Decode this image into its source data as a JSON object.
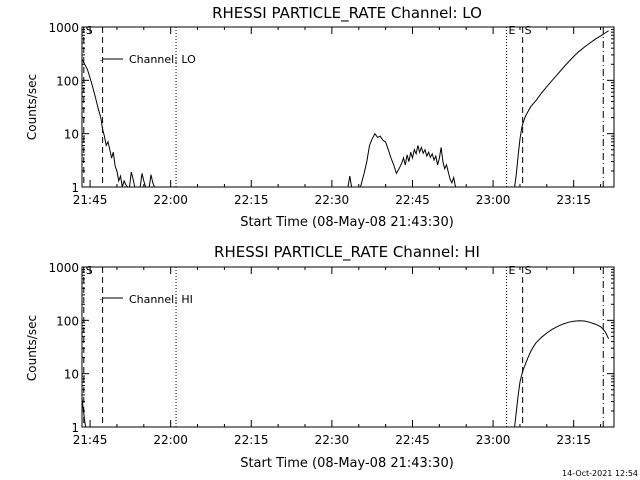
{
  "footer_timestamp": "14-Oct-2021 12:54",
  "chart_data": [
    {
      "type": "line",
      "title": "RHESSI PARTICLE_RATE Channel: LO",
      "xlabel": "Start Time (08-May-08 21:43:30)",
      "ylabel": "Counts/sec",
      "y_scale": "log",
      "ylim": [
        1,
        1000
      ],
      "xlim": [
        "21:43:30",
        "23:22:30"
      ],
      "x_ticks": [
        "21:45",
        "22:00",
        "22:15",
        "22:30",
        "22:45",
        "23:00",
        "23:15"
      ],
      "y_ticks": [
        "1",
        "10",
        "100",
        "1000"
      ],
      "legend": {
        "entries": [
          "Channel: LO"
        ],
        "placement": "top-left"
      },
      "markers": [
        {
          "label": "S",
          "time": "21:43:50",
          "style": "dashed"
        },
        {
          "label": "",
          "time": "21:47:20",
          "style": "dashed"
        },
        {
          "label": "",
          "time": "22:01:00",
          "style": "dotted"
        },
        {
          "label": "E",
          "time": "23:02:30",
          "style": "dotted"
        },
        {
          "label": "S",
          "time": "23:05:30",
          "style": "dashed"
        },
        {
          "label": "",
          "time": "23:20:30",
          "style": "dash-dot"
        }
      ],
      "series": [
        {
          "name": "Channel: LO",
          "segments": [
            {
              "x": [
                "21:43:30",
                "21:44:00",
                "21:44:30",
                "21:45:00",
                "21:45:30",
                "21:46:00",
                "21:46:30",
                "21:47:00",
                "21:47:20",
                "21:47:40",
                "21:48:00",
                "21:48:20",
                "21:48:40",
                "21:49:00",
                "21:49:20",
                "21:49:40",
                "21:50:00",
                "21:50:20",
                "21:50:40",
                "21:51:00",
                "21:51:20",
                "21:51:40",
                "21:52:00"
              ],
              "y": [
                250,
                200,
                160,
                110,
                75,
                48,
                30,
                20,
                12,
                9,
                6,
                7,
                5,
                3.5,
                4.5,
                2.5,
                2,
                1.3,
                1.6,
                1,
                1.3,
                1.1,
                1
              ]
            },
            {
              "x": [
                "21:52:20",
                "21:52:40",
                "21:53:00",
                "21:53:20"
              ],
              "y": [
                1,
                1.9,
                1.4,
                1
              ]
            },
            {
              "x": [
                "21:54:20",
                "21:54:40",
                "21:55:00",
                "21:55:20"
              ],
              "y": [
                1,
                1.8,
                1.3,
                1
              ]
            },
            {
              "x": [
                "21:56:00",
                "21:56:20",
                "21:56:40",
                "21:57:00"
              ],
              "y": [
                1,
                1.7,
                1.2,
                1
              ]
            },
            {
              "x": [
                "22:33:00",
                "22:33:20",
                "22:33:40"
              ],
              "y": [
                1,
                1.6,
                1
              ]
            },
            {
              "x": [
                "22:35:20",
                "22:36:00",
                "22:36:30",
                "22:37:00",
                "22:37:30",
                "22:38:00",
                "22:38:30",
                "22:39:00",
                "22:39:30",
                "22:40:00",
                "22:40:30",
                "22:41:00",
                "22:41:30",
                "22:42:00",
                "22:42:30",
                "22:43:00",
                "22:43:20",
                "22:43:40",
                "22:44:00",
                "22:44:20",
                "22:44:40",
                "22:45:00",
                "22:45:20",
                "22:45:40",
                "22:46:00",
                "22:46:20",
                "22:46:40",
                "22:47:00",
                "22:47:20",
                "22:47:40",
                "22:48:00",
                "22:48:20",
                "22:48:40",
                "22:49:00",
                "22:49:20",
                "22:49:40",
                "22:50:00",
                "22:50:20",
                "22:50:40",
                "22:51:00",
                "22:51:20",
                "22:51:40",
                "22:52:00",
                "22:52:20",
                "22:52:40",
                "22:53:00"
              ],
              "y": [
                1,
                1.8,
                3,
                6,
                8,
                10,
                8.5,
                9,
                7.5,
                7,
                5,
                3.5,
                2.6,
                1.8,
                2.2,
                2.8,
                3.5,
                2.6,
                4,
                3,
                4.5,
                3.5,
                5,
                4.2,
                6,
                4.5,
                5.5,
                4.3,
                5,
                3.8,
                4.5,
                3.6,
                4.2,
                3.2,
                3.8,
                2.6,
                3.5,
                5.5,
                3,
                2.2,
                2.6,
                1.9,
                1.4,
                1.2,
                1.5,
                1
              ]
            },
            {
              "x": [
                "23:04:00",
                "23:04:20",
                "23:04:40",
                "23:05:00",
                "23:05:20",
                "23:05:40",
                "23:06:00",
                "23:06:30",
                "23:07:00",
                "23:08:00",
                "23:09:00",
                "23:10:00",
                "23:11:00",
                "23:12:00",
                "23:13:00",
                "23:14:00",
                "23:15:00",
                "23:16:00",
                "23:17:00",
                "23:18:00",
                "23:19:00",
                "23:20:00",
                "23:21:00",
                "23:21:30"
              ],
              "y": [
                1,
                1.8,
                4,
                8,
                13,
                17,
                21,
                26,
                32,
                42,
                58,
                76,
                100,
                130,
                170,
                220,
                280,
                350,
                420,
                500,
                590,
                680,
                790,
                850
              ]
            }
          ]
        }
      ]
    },
    {
      "type": "line",
      "title": "RHESSI PARTICLE_RATE Channel: HI",
      "xlabel": "Start Time (08-May-08 21:43:30)",
      "ylabel": "Counts/sec",
      "y_scale": "log",
      "ylim": [
        1,
        1000
      ],
      "xlim": [
        "21:43:30",
        "23:22:30"
      ],
      "x_ticks": [
        "21:45",
        "22:00",
        "22:15",
        "22:30",
        "22:45",
        "23:00",
        "23:15"
      ],
      "y_ticks": [
        "1",
        "10",
        "100",
        "1000"
      ],
      "legend": {
        "entries": [
          "Channel: HI"
        ],
        "placement": "top-left"
      },
      "markers": [
        {
          "label": "S",
          "time": "21:43:50",
          "style": "dashed"
        },
        {
          "label": "",
          "time": "21:47:20",
          "style": "dashed"
        },
        {
          "label": "",
          "time": "22:01:00",
          "style": "dotted"
        },
        {
          "label": "E",
          "time": "23:02:30",
          "style": "dotted"
        },
        {
          "label": "S",
          "time": "23:05:30",
          "style": "dashed"
        },
        {
          "label": "",
          "time": "23:20:30",
          "style": "dash-dot"
        }
      ],
      "series": [
        {
          "name": "Channel: HI",
          "segments": [
            {
              "x": [
                "21:43:30",
                "21:43:40",
                "21:43:50",
                "21:44:00",
                "21:44:10"
              ],
              "y": [
                3.5,
                2.5,
                1.8,
                1.3,
                1
              ]
            },
            {
              "x": [
                "23:04:00",
                "23:04:20",
                "23:04:40",
                "23:05:00",
                "23:05:30",
                "23:06:00",
                "23:06:30",
                "23:07:00",
                "23:07:30",
                "23:08:00",
                "23:09:00",
                "23:10:00",
                "23:11:00",
                "23:12:00",
                "23:13:00",
                "23:14:00",
                "23:15:00",
                "23:16:00",
                "23:17:00",
                "23:18:00",
                "23:19:00",
                "23:20:00",
                "23:20:30",
                "23:21:00",
                "23:21:30"
              ],
              "y": [
                1,
                2,
                4,
                7,
                11,
                15,
                20,
                26,
                32,
                38,
                48,
                58,
                68,
                77,
                85,
                92,
                96,
                98,
                97,
                92,
                85,
                76,
                68,
                58,
                45
              ]
            }
          ]
        }
      ]
    }
  ]
}
